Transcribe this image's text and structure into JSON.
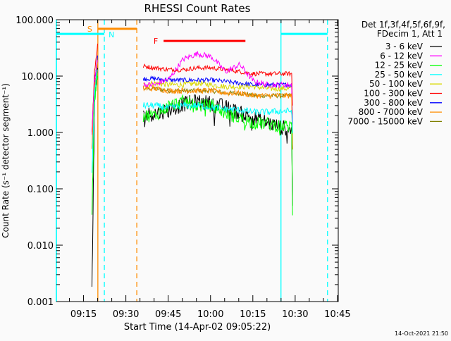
{
  "chart_data": {
    "type": "line",
    "title": "RHESSI Count Rates",
    "xlabel": "Start Time (14-Apr-02 09:05:22)",
    "ylabel": "Count Rate (s⁻¹ detector segment⁻¹)",
    "yscale": "log",
    "ylim": [
      0.001,
      100
    ],
    "xlim_minutes_from_start": [
      0,
      99.9
    ],
    "yticks": [
      "100.000",
      "10.000",
      "1.000",
      "0.100",
      "0.010",
      "0.001"
    ],
    "ytick_values": [
      100,
      10,
      1,
      0.1,
      0.01,
      0.001
    ],
    "xticks": [
      "09:15",
      "09:30",
      "09:45",
      "10:00",
      "10:15",
      "10:30",
      "10:45"
    ],
    "xtick_minutes": [
      9.63,
      24.63,
      39.63,
      54.63,
      69.63,
      84.63,
      99.63
    ],
    "legend_header": [
      "Det 1f,3f,4f,5f,6f,9f,",
      "FDecim 1, Att 1"
    ],
    "legend_position": "right",
    "timestamp": "14-Oct-2021 21:50",
    "t": [
      12.6,
      13.5,
      14.6,
      30.8,
      35,
      40,
      45,
      50,
      55,
      60,
      65,
      70,
      75,
      80,
      83.4,
      83.7
    ],
    "series": [
      {
        "name": "3 - 6 keV",
        "color": "#000000",
        "noise": 0.14,
        "values": [
          0.002,
          3,
          15,
          2,
          2.2,
          2.5,
          3.2,
          3.5,
          3.3,
          2.8,
          2.2,
          1.8,
          1.5,
          1.2,
          1.2,
          0.05
        ]
      },
      {
        "name": "6 - 12 keV",
        "color": "#ff00ff",
        "noise": 0.05,
        "values": [
          1,
          8,
          20,
          7,
          7,
          9,
          20,
          25,
          22,
          12,
          16,
          8,
          7,
          7,
          7,
          1
        ]
      },
      {
        "name": "12 - 25 keV",
        "color": "#00ff00",
        "noise": 0.12,
        "values": [
          0.04,
          4,
          12,
          2,
          2,
          3,
          3.5,
          3,
          3,
          2.2,
          1.8,
          1.5,
          1.4,
          1.3,
          1.3,
          0.04
        ]
      },
      {
        "name": "25 - 50 keV",
        "color": "#00ffff",
        "noise": 0.06,
        "values": [
          0.2,
          5,
          14,
          3,
          3,
          2.7,
          3,
          3,
          2.8,
          2.6,
          2.5,
          2.3,
          2.3,
          2.4,
          2.4,
          1
        ]
      },
      {
        "name": "50 - 100 keV",
        "color": "#d8d800",
        "noise": 0.05,
        "values": [
          1,
          8,
          18,
          7,
          7.5,
          7,
          7,
          7.5,
          7,
          6.5,
          6.5,
          6.5,
          6,
          6,
          6,
          1
        ]
      },
      {
        "name": "100 - 300 keV",
        "color": "#ff0000",
        "noise": 0.04,
        "values": [
          1,
          12,
          35,
          15,
          14,
          13,
          13,
          14,
          14,
          13,
          12,
          11,
          11,
          11,
          11,
          3
        ]
      },
      {
        "name": "300 - 800 keV",
        "color": "#0000ff",
        "noise": 0.04,
        "values": [
          1,
          8,
          22,
          9,
          9,
          8.5,
          8.5,
          8.5,
          8.5,
          8,
          7.5,
          7,
          7,
          7,
          7,
          1.5
        ]
      },
      {
        "name": "800 - 7000 keV",
        "color": "#ff8c00",
        "noise": 0.05,
        "values": [
          0.5,
          6,
          15,
          6,
          6,
          5.5,
          5.5,
          5.5,
          5.5,
          5,
          5,
          4.5,
          4.5,
          4.5,
          4.5,
          0.5
        ]
      },
      {
        "name": "7000 - 15000 keV",
        "color": "#808000",
        "noise": 0.04,
        "values": [
          0.5,
          6,
          15,
          6,
          6,
          5.5,
          5.5,
          5.5,
          5.5,
          5,
          5,
          4.5,
          4.5,
          4.5,
          4.5,
          0.5
        ]
      }
    ],
    "draw_order": [
      8,
      4,
      6,
      5,
      1,
      7,
      0,
      2,
      3
    ],
    "markers": [
      {
        "label": "",
        "t": 0,
        "color": "#00ffff",
        "style": "solid"
      },
      {
        "label": "",
        "t": 14.7,
        "color": "#ff8c00",
        "style": "solid"
      },
      {
        "label": "",
        "t": 17.0,
        "color": "#00ffff",
        "style": "dashed"
      },
      {
        "label": "",
        "t": 28.5,
        "color": "#ff8c00",
        "style": "dashed"
      },
      {
        "label": "",
        "t": 79.6,
        "color": "#00ffff",
        "style": "solid"
      },
      {
        "label": "",
        "t": 96.1,
        "color": "#00ffff",
        "style": "dashed"
      }
    ],
    "intervals": [
      {
        "label": "S",
        "t0": 14.7,
        "t1": 28.5,
        "level": 69,
        "color": "#ff8c00",
        "label_side": "left"
      },
      {
        "label": "N",
        "t0": 0,
        "t1": 17.0,
        "level": 56,
        "color": "#00ffff",
        "label_side": "right"
      },
      {
        "label": "",
        "t0": 79.6,
        "t1": 96.1,
        "level": 56,
        "color": "#00ffff",
        "label_side": "none"
      },
      {
        "label": "F",
        "t0": 38,
        "t1": 67,
        "level": 42,
        "color": "#ff0000",
        "label_side": "left"
      }
    ]
  }
}
